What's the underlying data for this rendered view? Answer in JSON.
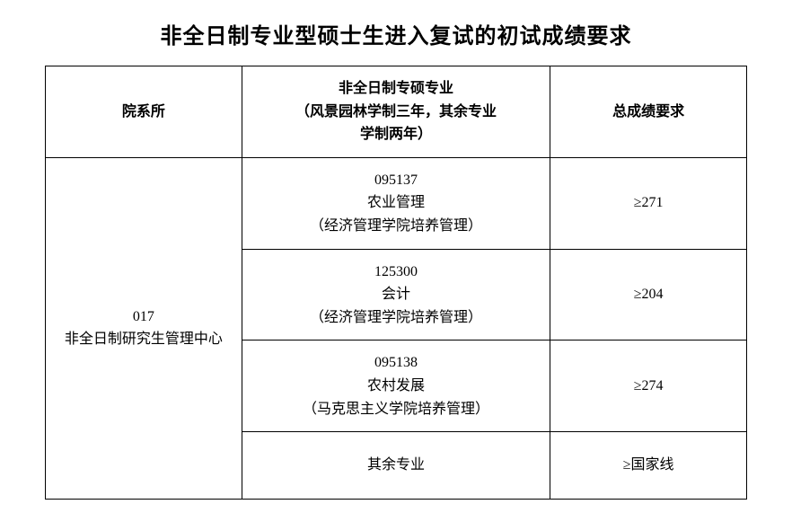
{
  "title": "非全日制专业型硕士生进入复试的初试成绩要求",
  "table": {
    "headers": {
      "dept": "院系所",
      "major": "非全日制专硕专业\n（风景园林学制三年，其余专业\n学制两年）",
      "score": "总成绩要求"
    },
    "dept": {
      "code": "017",
      "name": "非全日制研究生管理中心"
    },
    "rows": [
      {
        "code": "095137",
        "name": "农业管理",
        "note": "（经济管理学院培养管理）",
        "score": "≥271"
      },
      {
        "code": "125300",
        "name": "会计",
        "note": "（经济管理学院培养管理）",
        "score": "≥204"
      },
      {
        "code": "095138",
        "name": "农村发展",
        "note": "（马克思主义学院培养管理）",
        "score": "≥274"
      },
      {
        "code": "",
        "name": "其余专业",
        "note": "",
        "score": "≥国家线"
      }
    ]
  },
  "styling": {
    "background_color": "#ffffff",
    "border_color": "#000000",
    "border_width": 1.5,
    "title_fontsize": 24,
    "cell_fontsize": 16,
    "font_family": "SimSun"
  }
}
